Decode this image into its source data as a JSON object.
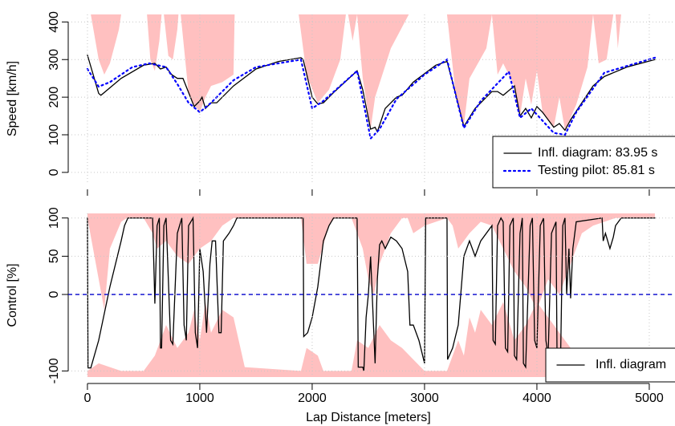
{
  "chart_data": [
    {
      "type": "line",
      "ylabel": "Speed [km/h]",
      "xlim": [
        -171,
        5229
      ],
      "ylim": [
        -28,
        420
      ],
      "xticks": [
        0,
        1000,
        2000,
        3000,
        4000,
        5000
      ],
      "xticklabels": false,
      "yticks": [
        0,
        100,
        200,
        300,
        400
      ],
      "grid": true,
      "legend": "bottom-right",
      "series": [
        {
          "color": "#ffc0c0",
          "fill": "above",
          "x": [
            30,
            100,
            150,
            200,
            280,
            300,
            null,
            530,
            560,
            600,
            640,
            660,
            null,
            680,
            720,
            760,
            800,
            810,
            null,
            830,
            900,
            950,
            1000,
            1050,
            1100,
            1200,
            1300,
            1310,
            null,
            1880,
            1950,
            2050,
            2150,
            2250,
            2300,
            null,
            2320,
            2360,
            2400,
            null,
            2400,
            2450,
            2520,
            2560,
            2700,
            2860,
            null,
            3200,
            3280,
            3350,
            3400,
            3550,
            3600,
            null,
            3600,
            3650,
            3700,
            3800,
            3850,
            3900,
            3950,
            4000,
            4050,
            4150,
            4200,
            4250,
            4350,
            4450,
            4500,
            null,
            4500,
            4550,
            4620,
            4680,
            null,
            4700,
            4720,
            4750
          ],
          "values": [
            420,
            300,
            260,
            290,
            380,
            420,
            null,
            420,
            300,
            270,
            350,
            420,
            null,
            420,
            310,
            300,
            380,
            420,
            null,
            420,
            210,
            180,
            160,
            200,
            230,
            240,
            260,
            420,
            null,
            420,
            260,
            185,
            220,
            300,
            420,
            null,
            420,
            350,
            420,
            null,
            420,
            250,
            115,
            200,
            330,
            420,
            null,
            420,
            200,
            125,
            250,
            330,
            420,
            null,
            420,
            260,
            290,
            230,
            150,
            250,
            180,
            270,
            160,
            120,
            200,
            112,
            180,
            280,
            420,
            null,
            420,
            290,
            300,
            420,
            null,
            420,
            330,
            420
          ]
        },
        {
          "name": "Infl. diagram: 83.95 s",
          "color": "#000000",
          "style": "solid",
          "x": [
            0,
            100,
            120,
            300,
            500,
            600,
            650,
            700,
            750,
            800,
            850,
            950,
            1000,
            1020,
            1050,
            1100,
            1150,
            1300,
            1500,
            1700,
            1900,
            1920,
            2000,
            2050,
            2100,
            2200,
            2400,
            2450,
            2520,
            2560,
            2580,
            2650,
            2750,
            2800,
            2900,
            3100,
            3200,
            3250,
            3350,
            3450,
            3600,
            3650,
            3700,
            3800,
            3850,
            3900,
            3950,
            4000,
            4050,
            4150,
            4200,
            4250,
            4300,
            4500,
            4600,
            4800,
            5050
          ],
          "values": [
            312,
            210,
            205,
            250,
            285,
            290,
            275,
            280,
            260,
            250,
            250,
            175,
            190,
            200,
            170,
            185,
            185,
            230,
            275,
            295,
            305,
            300,
            200,
            182,
            185,
            215,
            270,
            220,
            115,
            120,
            108,
            170,
            200,
            205,
            240,
            285,
            295,
            240,
            122,
            170,
            215,
            215,
            205,
            230,
            150,
            170,
            145,
            175,
            160,
            120,
            130,
            112,
            140,
            230,
            255,
            280,
            300
          ]
        },
        {
          "name": "Testing pilot: 85.81 s",
          "color": "#0000ff",
          "style": "dotted",
          "x": [
            0,
            100,
            200,
            400,
            550,
            700,
            800,
            900,
            1000,
            1100,
            1300,
            1500,
            1900,
            2000,
            2100,
            2400,
            2520,
            2600,
            2750,
            3000,
            3200,
            3350,
            3500,
            3750,
            3850,
            3950,
            4150,
            4250,
            4350,
            4600,
            5050
          ],
          "values": [
            275,
            228,
            240,
            280,
            290,
            280,
            235,
            185,
            160,
            185,
            245,
            280,
            300,
            170,
            190,
            270,
            90,
            115,
            195,
            260,
            300,
            118,
            190,
            268,
            145,
            170,
            105,
            100,
            160,
            265,
            305
          ]
        }
      ]
    },
    {
      "type": "line",
      "ylabel": "Control [%]",
      "xlabel": "Lap Distance [meters]",
      "xlim": [
        -171,
        5229
      ],
      "ylim": [
        -108,
        106
      ],
      "xticks": [
        0,
        1000,
        2000,
        3000,
        4000,
        5000
      ],
      "xticklabels": true,
      "yticks": [
        -100,
        0,
        50,
        100
      ],
      "grid": true,
      "legend": "bottom-right",
      "hline": {
        "value": 0,
        "color": "#0000cc"
      },
      "series": [
        {
          "color": "#ffc0c0",
          "fill": "above",
          "x": [
            0,
            50,
            100,
            150,
            200,
            300,
            350,
            500,
            580,
            620,
            700,
            800,
            900,
            1000,
            1100,
            1200,
            1300,
            1900,
            1950,
            2050,
            2150,
            2200,
            2350,
            2400,
            2450,
            2500,
            2550,
            2600,
            2700,
            2800,
            2850,
            2900,
            3000,
            3200,
            3250,
            3300,
            3400,
            3500,
            3600,
            3700,
            3800,
            3900,
            4000,
            4100,
            4200,
            4300,
            4400,
            4500,
            4600,
            4700,
            5050
          ],
          "values": [
            100,
            60,
            20,
            -20,
            60,
            95,
            100,
            100,
            80,
            60,
            70,
            50,
            40,
            60,
            70,
            90,
            100,
            100,
            40,
            40,
            90,
            100,
            100,
            80,
            60,
            20,
            0,
            40,
            80,
            100,
            100,
            80,
            90,
            100,
            90,
            60,
            80,
            95,
            90,
            60,
            30,
            10,
            -20,
            20,
            0,
            40,
            80,
            90,
            95,
            100,
            100
          ]
        },
        {
          "color": "#ffc0c0",
          "fill": "below",
          "x": [
            0,
            100,
            200,
            300,
            500,
            600,
            700,
            800,
            900,
            950,
            1000,
            1050,
            1100,
            1200,
            1300,
            1400,
            1900,
            1950,
            2050,
            2100,
            2350,
            2400,
            2500,
            2600,
            2700,
            2800,
            2900,
            3000,
            3200,
            3300,
            3350,
            3400,
            3450,
            3500,
            3600,
            3700,
            3800,
            3900,
            4000,
            4100,
            4200,
            4300,
            4400,
            4500,
            5050
          ],
          "values": [
            -100,
            -90,
            -95,
            -100,
            -100,
            -80,
            -40,
            -70,
            -50,
            -20,
            -60,
            -10,
            -50,
            -20,
            -30,
            -95,
            -100,
            -70,
            -80,
            -100,
            -100,
            -60,
            -70,
            -40,
            -60,
            -70,
            -85,
            -100,
            -100,
            -60,
            -80,
            -30,
            -50,
            -20,
            -40,
            -10,
            -60,
            -40,
            -10,
            -30,
            -50,
            -70,
            -90,
            -100,
            -100
          ]
        },
        {
          "name": "Infl. diagram",
          "color": "#000000",
          "style": "solid",
          "x": [
            0,
            5,
            30,
            100,
            200,
            300,
            330,
            360,
            580,
            600,
            620,
            640,
            650,
            660,
            680,
            700,
            740,
            760,
            800,
            840,
            860,
            880,
            900,
            940,
            960,
            980,
            1000,
            1030,
            1060,
            1090,
            1110,
            1140,
            1170,
            1190,
            1210,
            1260,
            1300,
            1330,
            1920,
            1925,
            1960,
            2000,
            2050,
            2100,
            2150,
            2190,
            2400,
            2410,
            2450,
            2460,
            2480,
            2500,
            2520,
            2560,
            2580,
            2600,
            2620,
            2650,
            2700,
            2750,
            2800,
            2850,
            2870,
            2900,
            2950,
            3000,
            3010,
            3200,
            3205,
            3250,
            3300,
            3350,
            3400,
            3450,
            3500,
            3600,
            3610,
            3630,
            3650,
            3680,
            3700,
            3720,
            3740,
            3760,
            3790,
            3800,
            3820,
            3850,
            3870,
            3880,
            3900,
            3940,
            3960,
            3980,
            4000,
            4030,
            4060,
            4080,
            4100,
            4130,
            4170,
            4180,
            4210,
            4230,
            4250,
            4265,
            4285,
            4300,
            4320,
            4350,
            4580,
            4590,
            4610,
            4630,
            4650,
            4680,
            4700,
            4750,
            5050
          ],
          "values": [
            100,
            -96,
            -96,
            -60,
            10,
            70,
            90,
            100,
            100,
            -12,
            90,
            100,
            -70,
            -70,
            90,
            100,
            -60,
            -65,
            80,
            100,
            -40,
            -60,
            90,
            100,
            -50,
            -70,
            60,
            30,
            -50,
            40,
            70,
            70,
            -50,
            -50,
            70,
            80,
            90,
            100,
            100,
            -55,
            -50,
            -30,
            10,
            70,
            90,
            100,
            100,
            -95,
            -95,
            -100,
            -30,
            0,
            50,
            -90,
            20,
            65,
            70,
            60,
            75,
            70,
            60,
            30,
            -40,
            -40,
            -60,
            -90,
            100,
            100,
            -85,
            -70,
            -40,
            50,
            70,
            50,
            70,
            90,
            -60,
            -65,
            90,
            100,
            95,
            -70,
            -75,
            90,
            100,
            -80,
            -85,
            80,
            100,
            -90,
            -95,
            90,
            100,
            -60,
            -70,
            90,
            100,
            -60,
            -80,
            80,
            95,
            -95,
            -90,
            90,
            100,
            0,
            60,
            -5,
            60,
            95,
            100,
            70,
            80,
            70,
            60,
            75,
            90,
            100,
            100
          ]
        }
      ]
    }
  ]
}
